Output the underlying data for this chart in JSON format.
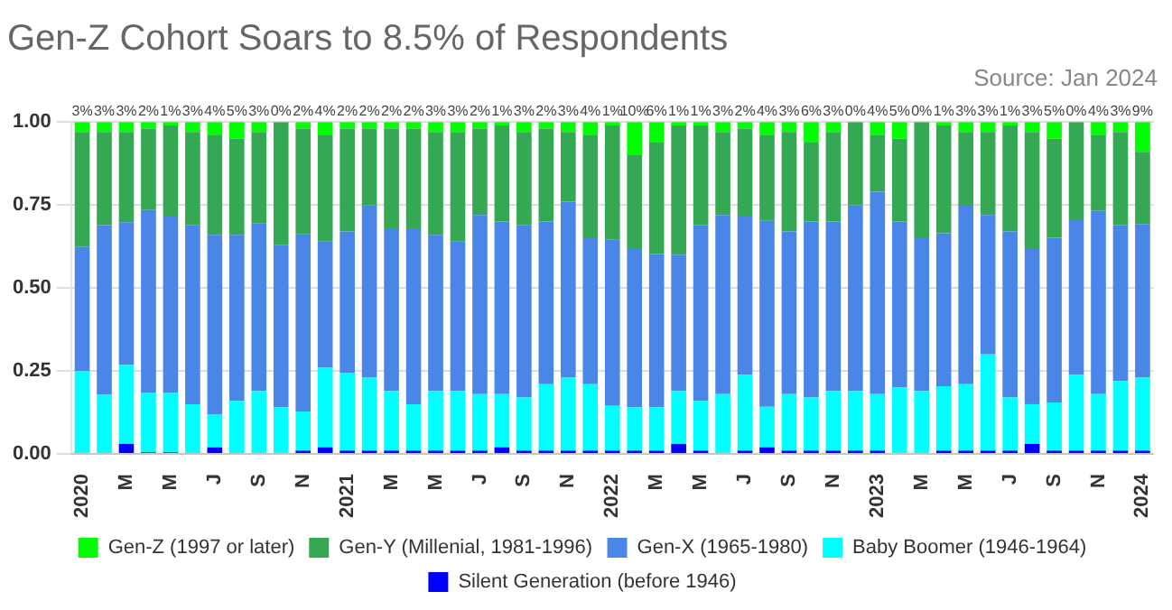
{
  "chart_data": {
    "type": "bar",
    "stacked": true,
    "title": "Gen-Z Cohort Soars to 8.5% of Respondents",
    "subtitle": "Source: Jan 2024",
    "categories": [
      "2020",
      null,
      "M",
      null,
      "M",
      null,
      "J",
      null,
      "S",
      null,
      "N",
      null,
      "2021",
      null,
      "M",
      null,
      "M",
      null,
      "J",
      null,
      "S",
      null,
      "N",
      null,
      "2022",
      null,
      "M",
      null,
      "M",
      null,
      "J",
      null,
      "S",
      null,
      "N",
      null,
      "2023",
      null,
      "M",
      null,
      "M",
      null,
      "J",
      null,
      "S",
      null,
      "N",
      null,
      "2024"
    ],
    "series": [
      {
        "name": "Silent Generation (before 1946)",
        "color": "#0000ff",
        "values": [
          0,
          0,
          0.03,
          0.005,
          0.005,
          0,
          0.02,
          0,
          0,
          0,
          0.01,
          0.02,
          0.01,
          0.01,
          0.01,
          0.01,
          0.01,
          0.01,
          0.01,
          0.02,
          0.01,
          0.01,
          0.01,
          0.01,
          0.01,
          0.01,
          0.01,
          0.03,
          0.01,
          0,
          0.01,
          0.02,
          0.01,
          0.01,
          0.01,
          0.01,
          0.01,
          0,
          0,
          0.01,
          0.01,
          0.01,
          0.01,
          0.03,
          0.01,
          0.01,
          0.01,
          0.01,
          0.01
        ]
      },
      {
        "name": "Baby Boomer (1946-1964)",
        "color": "#00ffff",
        "values": [
          0.25,
          0.178,
          0.238,
          0.18,
          0.18,
          0.15,
          0.1,
          0.16,
          0.19,
          0.14,
          0.118,
          0.24,
          0.235,
          0.22,
          0.18,
          0.14,
          0.18,
          0.18,
          0.17,
          0.16,
          0.16,
          0.2,
          0.22,
          0.2,
          0.135,
          0.13,
          0.13,
          0.16,
          0.15,
          0.18,
          0.228,
          0.122,
          0.17,
          0.16,
          0.18,
          0.18,
          0.17,
          0.2,
          0.19,
          0.194,
          0.2,
          0.29,
          0.16,
          0.12,
          0.145,
          0.229,
          0.17,
          0.21,
          0.22
        ]
      },
      {
        "name": "Gen-X (1965-1980)",
        "color": "#4a86e8",
        "values": [
          0.375,
          0.511,
          0.43,
          0.55,
          0.53,
          0.54,
          0.54,
          0.5,
          0.504,
          0.49,
          0.535,
          0.38,
          0.425,
          0.52,
          0.49,
          0.53,
          0.47,
          0.45,
          0.54,
          0.52,
          0.52,
          0.49,
          0.53,
          0.44,
          0.5,
          0.48,
          0.462,
          0.41,
          0.53,
          0.54,
          0.48,
          0.56,
          0.49,
          0.53,
          0.51,
          0.56,
          0.61,
          0.5,
          0.46,
          0.461,
          0.538,
          0.42,
          0.5,
          0.47,
          0.496,
          0.468,
          0.552,
          0.47,
          0.463
        ]
      },
      {
        "name": "Gen-Y (Millenial, 1981-1996)",
        "color": "#34a853",
        "values": [
          0.345,
          0.281,
          0.272,
          0.245,
          0.275,
          0.28,
          0.3,
          0.29,
          0.276,
          0.37,
          0.317,
          0.32,
          0.31,
          0.23,
          0.3,
          0.3,
          0.31,
          0.33,
          0.26,
          0.29,
          0.28,
          0.28,
          0.21,
          0.31,
          0.345,
          0.28,
          0.338,
          0.39,
          0.3,
          0.25,
          0.262,
          0.258,
          0.3,
          0.24,
          0.27,
          0.25,
          0.17,
          0.25,
          0.35,
          0.325,
          0.222,
          0.25,
          0.32,
          0.35,
          0.299,
          0.293,
          0.228,
          0.28,
          0.217
        ]
      },
      {
        "name": "Gen-Z (1997 or later)",
        "color": "#00ff00",
        "values": [
          0.03,
          0.03,
          0.03,
          0.02,
          0.01,
          0.03,
          0.04,
          0.05,
          0.03,
          0,
          0.02,
          0.04,
          0.02,
          0.02,
          0.02,
          0.02,
          0.03,
          0.03,
          0.02,
          0.01,
          0.03,
          0.02,
          0.03,
          0.04,
          0.01,
          0.1,
          0.06,
          0.01,
          0.01,
          0.03,
          0.02,
          0.04,
          0.03,
          0.06,
          0.03,
          0,
          0.04,
          0.05,
          0,
          0.01,
          0.03,
          0.03,
          0.01,
          0.03,
          0.05,
          0,
          0.04,
          0.03,
          0.09
        ],
        "value_labels": [
          "3%",
          "3%",
          "3%",
          "2%",
          "1%",
          "3%",
          "4%",
          "5%",
          "3%",
          "0%",
          "2%",
          "4%",
          "2%",
          "2%",
          "2%",
          "2%",
          "3%",
          "3%",
          "2%",
          "1%",
          "3%",
          "2%",
          "3%",
          "4%",
          "1%",
          "10%",
          "6%",
          "1%",
          "1%",
          "3%",
          "2%",
          "4%",
          "3%",
          "6%",
          "3%",
          "0%",
          "4%",
          "5%",
          "0%",
          "1%",
          "3%",
          "3%",
          "1%",
          "3%",
          "5%",
          "0%",
          "4%",
          "3%",
          "9%"
        ]
      }
    ],
    "ylim": [
      0,
      1
    ],
    "yticks": [
      {
        "value": 0,
        "label": "0.00"
      },
      {
        "value": 0.25,
        "label": "0.25"
      },
      {
        "value": 0.5,
        "label": "0.50"
      },
      {
        "value": 0.75,
        "label": "0.75"
      },
      {
        "value": 1,
        "label": "1.00"
      }
    ],
    "grid": "y",
    "legend": "bottom"
  }
}
